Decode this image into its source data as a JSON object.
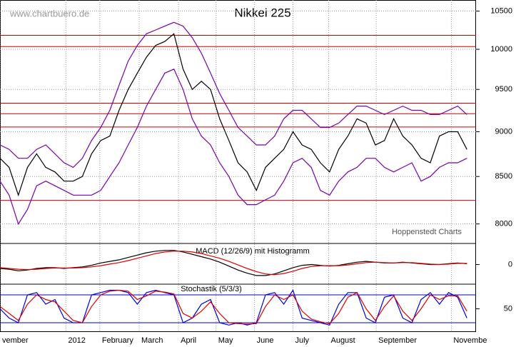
{
  "chart_data": [
    {
      "type": "line",
      "title": "Nikkei 225",
      "source": "www.chartbuero.de",
      "credit": "Hoppenstedt Charts",
      "log_scale": true,
      "grid": true,
      "x": [
        0,
        1,
        2,
        3,
        4,
        5,
        6,
        7,
        8,
        9,
        10,
        11,
        12,
        13,
        14,
        15,
        16,
        17,
        18,
        19,
        20,
        21,
        22,
        23,
        24,
        25,
        26,
        27,
        28,
        29,
        30,
        31,
        32,
        33,
        34,
        35,
        36,
        37,
        38,
        39,
        40,
        41,
        42,
        43,
        44,
        45,
        46,
        47,
        48,
        49,
        50,
        51
      ],
      "xlim": [
        0,
        52
      ],
      "xticks": [
        {
          "value": 0,
          "label": "vember"
        },
        {
          "value": 7.2,
          "label": "2012"
        },
        {
          "value": 10.9,
          "label": "February"
        },
        {
          "value": 15.2,
          "label": "March"
        },
        {
          "value": 19.5,
          "label": "April"
        },
        {
          "value": 23.6,
          "label": "May"
        },
        {
          "value": 27.8,
          "label": "June"
        },
        {
          "value": 32.0,
          "label": "July"
        },
        {
          "value": 35.9,
          "label": "August"
        },
        {
          "value": 41.1,
          "label": "September"
        },
        {
          "value": 49.3,
          "label": "Novembe"
        }
      ],
      "ylim": [
        7810,
        10650
      ],
      "yticks": [
        8000,
        8500,
        9000,
        9500,
        10000,
        10500
      ],
      "reference_lines": [
        10180,
        10035,
        9335,
        9210,
        9055,
        8245
      ],
      "reference_color": "#cc0000",
      "series": [
        {
          "color": "#000000",
          "values": [
            8700,
            8600,
            8300,
            8600,
            8750,
            8600,
            8550,
            8450,
            8450,
            8500,
            8750,
            8900,
            8950,
            9250,
            9500,
            9700,
            9900,
            10050,
            10100,
            10200,
            9750,
            9500,
            9600,
            9500,
            9150,
            8900,
            8650,
            8550,
            8350,
            8600,
            8700,
            8800,
            9000,
            8850,
            8800,
            8650,
            8550,
            8800,
            8950,
            9150,
            9100,
            8850,
            8900,
            9150,
            8950,
            8850,
            8700,
            8650,
            8950,
            9000,
            9000,
            8800
          ]
        },
        {
          "color": "#7a00a8",
          "values": [
            8850,
            8800,
            8700,
            8700,
            8800,
            8850,
            8750,
            8650,
            8600,
            8700,
            8900,
            9050,
            9250,
            9550,
            9850,
            10050,
            10200,
            10250,
            10300,
            10350,
            10300,
            10150,
            9950,
            9700,
            9450,
            9250,
            9050,
            8950,
            8850,
            8850,
            8950,
            9150,
            9250,
            9250,
            9150,
            9050,
            9050,
            9100,
            9200,
            9300,
            9300,
            9250,
            9200,
            9250,
            9300,
            9250,
            9250,
            9200,
            9200,
            9250,
            9300,
            9200
          ]
        },
        {
          "color": "#7a00a8",
          "values": [
            8450,
            8300,
            8000,
            8150,
            8400,
            8450,
            8400,
            8350,
            8300,
            8300,
            8300,
            8350,
            8500,
            8650,
            8850,
            9050,
            9300,
            9500,
            9700,
            9750,
            9500,
            9150,
            8950,
            8850,
            8650,
            8500,
            8300,
            8200,
            8200,
            8250,
            8300,
            8450,
            8650,
            8700,
            8600,
            8350,
            8300,
            8450,
            8550,
            8600,
            8700,
            8700,
            8600,
            8550,
            8600,
            8650,
            8450,
            8500,
            8600,
            8650,
            8650,
            8700
          ]
        }
      ]
    },
    {
      "type": "line",
      "title": "MACD (12/26/9) mit Histogramm",
      "x": [
        0,
        1,
        2,
        3,
        4,
        5,
        6,
        7,
        8,
        9,
        10,
        11,
        12,
        13,
        14,
        15,
        16,
        17,
        18,
        19,
        20,
        21,
        22,
        23,
        24,
        25,
        26,
        27,
        28,
        29,
        30,
        31,
        32,
        33,
        34,
        35,
        36,
        37,
        38,
        39,
        40,
        41,
        42,
        43,
        44,
        45,
        46,
        47,
        48,
        49,
        50,
        51
      ],
      "xlim": [
        0,
        52
      ],
      "ylim": [
        -250,
        250
      ],
      "yticks": [
        0
      ],
      "series": [
        {
          "color": "#000000",
          "values": [
            -50,
            -60,
            -80,
            -70,
            -50,
            -40,
            -40,
            -50,
            -40,
            -30,
            -10,
            20,
            40,
            60,
            90,
            120,
            150,
            170,
            180,
            180,
            160,
            130,
            100,
            70,
            30,
            -20,
            -70,
            -110,
            -140,
            -140,
            -120,
            -80,
            -40,
            -10,
            0,
            -10,
            -20,
            -10,
            10,
            30,
            40,
            30,
            20,
            20,
            30,
            20,
            10,
            0,
            0,
            10,
            20,
            10
          ]
        },
        {
          "color": "#dd0000",
          "values": [
            -40,
            -50,
            -60,
            -65,
            -60,
            -50,
            -45,
            -45,
            -45,
            -40,
            -30,
            -15,
            5,
            25,
            50,
            80,
            110,
            140,
            160,
            170,
            170,
            160,
            140,
            110,
            80,
            40,
            -5,
            -50,
            -90,
            -120,
            -130,
            -115,
            -85,
            -50,
            -25,
            -15,
            -15,
            -15,
            -5,
            10,
            25,
            30,
            25,
            20,
            25,
            25,
            15,
            5,
            0,
            5,
            15,
            15
          ]
        }
      ]
    },
    {
      "type": "line",
      "title": "Stochastik (5/3/3)",
      "x": [
        0,
        1,
        2,
        3,
        4,
        5,
        6,
        7,
        8,
        9,
        10,
        11,
        12,
        13,
        14,
        15,
        16,
        17,
        18,
        19,
        20,
        21,
        22,
        23,
        24,
        25,
        26,
        27,
        28,
        29,
        30,
        31,
        32,
        33,
        34,
        35,
        36,
        37,
        38,
        39,
        40,
        41,
        42,
        43,
        44,
        45,
        46,
        47,
        48,
        49,
        50,
        51
      ],
      "xlim": [
        0,
        52
      ],
      "ylim": [
        0,
        100
      ],
      "yticks": [
        50
      ],
      "reference_lines": [
        80,
        20
      ],
      "reference_color": "#0000cc",
      "series": [
        {
          "color": "#0000dd",
          "values": [
            50,
            30,
            20,
            80,
            85,
            60,
            70,
            30,
            20,
            20,
            80,
            85,
            90,
            90,
            85,
            60,
            85,
            90,
            85,
            80,
            20,
            30,
            60,
            70,
            20,
            15,
            20,
            15,
            20,
            80,
            85,
            60,
            90,
            30,
            25,
            20,
            15,
            60,
            85,
            85,
            30,
            20,
            75,
            80,
            30,
            20,
            70,
            85,
            60,
            85,
            75,
            30
          ]
        },
        {
          "color": "#dd0000",
          "values": [
            55,
            40,
            25,
            60,
            80,
            70,
            65,
            45,
            25,
            20,
            55,
            80,
            88,
            90,
            88,
            70,
            78,
            88,
            86,
            82,
            40,
            30,
            45,
            65,
            40,
            20,
            18,
            17,
            18,
            55,
            80,
            70,
            80,
            45,
            28,
            22,
            18,
            40,
            75,
            85,
            50,
            25,
            55,
            78,
            45,
            25,
            50,
            80,
            70,
            78,
            78,
            45
          ]
        }
      ]
    }
  ]
}
